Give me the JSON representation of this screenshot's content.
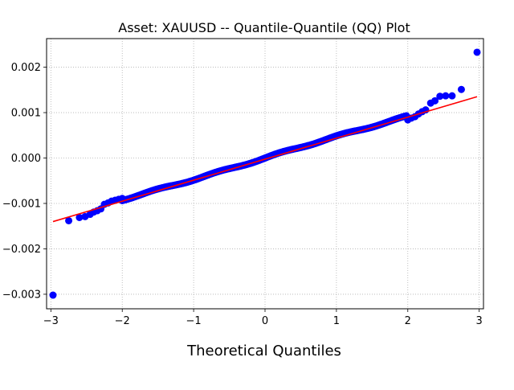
{
  "chart_data": {
    "type": "scatter",
    "title": "Asset: XAUUSD -- Quantile-Quantile (QQ) Plot",
    "xlabel": "Theoretical Quantiles",
    "ylabel": "",
    "xlim": [
      -3.06,
      3.06
    ],
    "ylim": [
      -0.00332,
      0.00263
    ],
    "xticks": [
      -3,
      -2,
      -1,
      0,
      1,
      2,
      3
    ],
    "xtick_labels": [
      "−3",
      "−2",
      "−1",
      "0",
      "1",
      "2",
      "3"
    ],
    "yticks": [
      -0.003,
      -0.002,
      -0.001,
      0.0,
      0.001,
      0.002
    ],
    "ytick_labels": [
      "−0.003",
      "−0.002",
      "−0.001",
      "0.000",
      "0.001",
      "0.002"
    ],
    "grid": true,
    "grid_style": "dotted",
    "marker_color": "#0000ff",
    "line_color": "#ff0000",
    "reference_line": {
      "x": [
        -2.97,
        2.97
      ],
      "y": [
        -0.0014,
        0.00135
      ]
    },
    "sample_quantiles": {
      "x": [
        -2.97,
        -2.75,
        -2.6,
        -2.52,
        -2.45,
        -2.4,
        -2.35,
        -2.3,
        -2.25,
        -2.2,
        -2.15,
        -2.1,
        -2.05,
        -2.0,
        2.0,
        2.05,
        2.1,
        2.15,
        2.2,
        2.25,
        2.32,
        2.38,
        2.45,
        2.53,
        2.62,
        2.75,
        2.97
      ],
      "y": [
        -0.00302,
        -0.00138,
        -0.00131,
        -0.00129,
        -0.00124,
        -0.00119,
        -0.00116,
        -0.00112,
        -0.00102,
        -0.00099,
        -0.00095,
        -0.00093,
        -0.00091,
        -0.00089,
        0.00084,
        0.00088,
        0.00091,
        0.00097,
        0.00102,
        0.00106,
        0.00121,
        0.00126,
        0.00136,
        0.00137,
        0.00137,
        0.00151,
        0.00233
      ]
    },
    "body_series": {
      "x_from": -2.0,
      "x_to": 2.0,
      "slope": 0.000465,
      "intercept": 0.0
    }
  }
}
